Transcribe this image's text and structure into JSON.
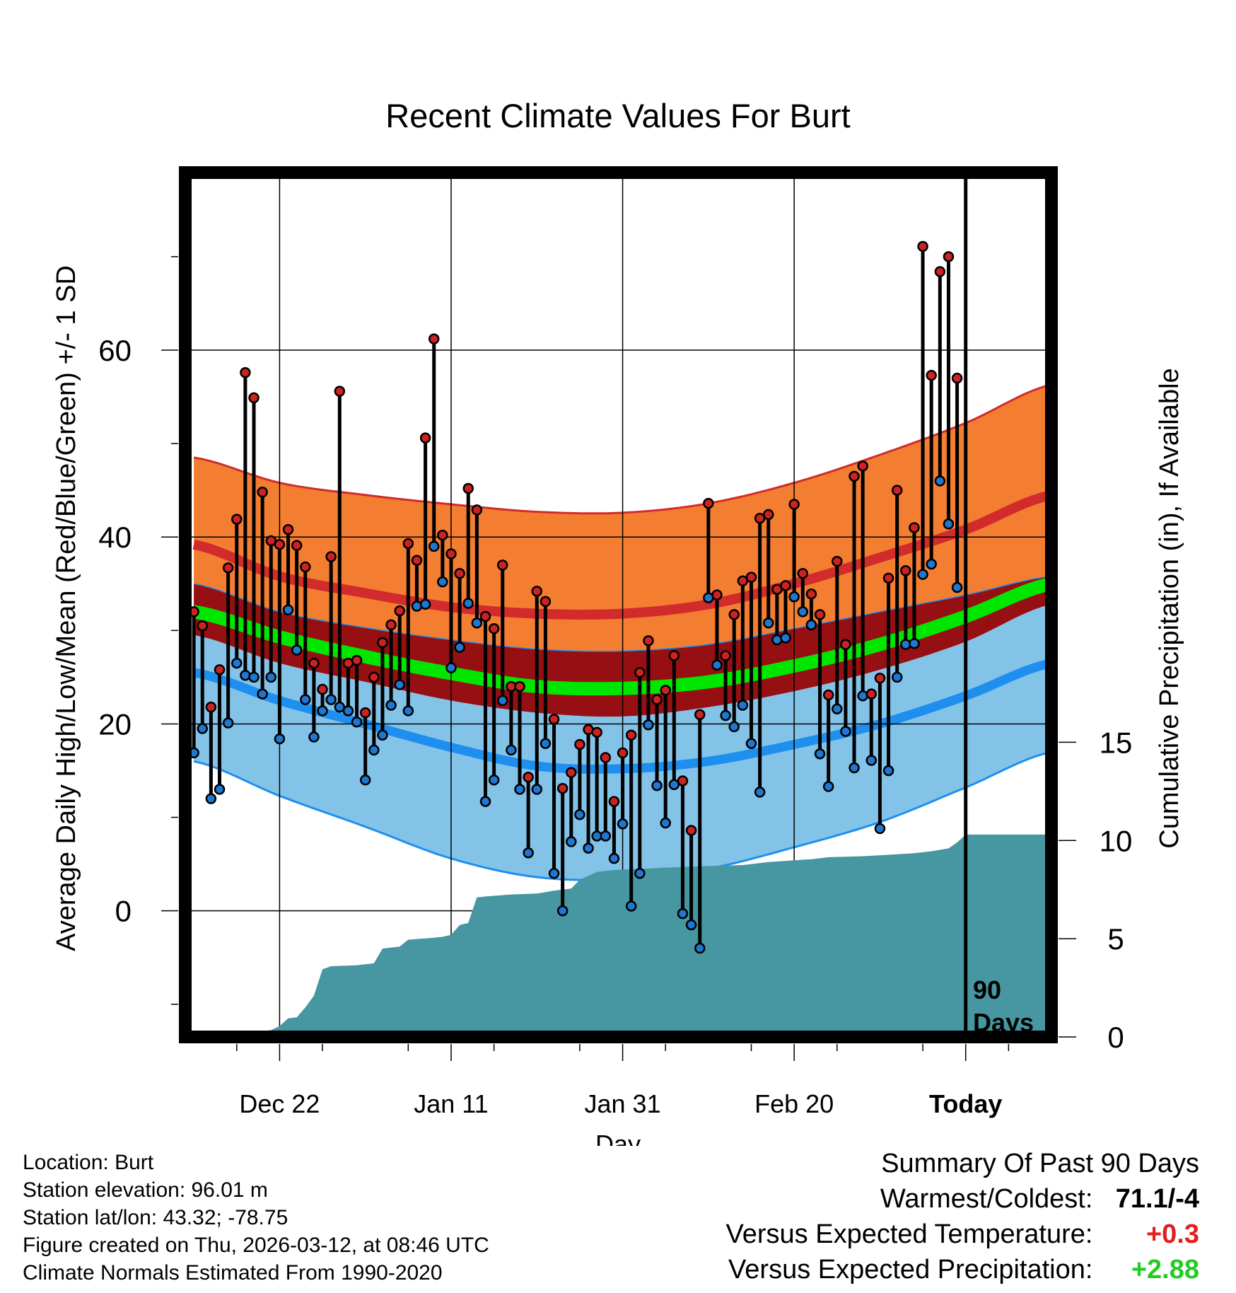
{
  "colors": {
    "orange_band": "#F37E31",
    "red_line": "#D22B2B",
    "dark_red_band": "#960F12",
    "green_line": "#00E600",
    "light_blue_band": "#83C3E8",
    "blue_line": "#1E8FEF",
    "precip_fill": "#4697A1",
    "high_point": "#CC2222",
    "low_point": "#1F77D0",
    "warm_value": "#E02020",
    "wet_value": "#22CC22"
  },
  "chart_data": {
    "type": "line",
    "title": "Recent Climate Values For Burt",
    "xlabel": "Day",
    "ylabel": "Average Daily High/Low/Mean (Red/Blue/Green) +/- 1 SD",
    "y2label": "Cumulative Precipitation (in), If Available",
    "xlim": [
      -11,
      90
    ],
    "ylim": [
      -13.5,
      79
    ],
    "y2lim": [
      0,
      44
    ],
    "y_ticks": [
      0,
      20,
      40,
      60
    ],
    "y2_ticks": [
      0,
      5,
      10,
      15
    ],
    "x_ticks": [
      {
        "x": 0,
        "label": "Dec 22"
      },
      {
        "x": 20,
        "label": "Jan 11"
      },
      {
        "x": 40,
        "label": "Jan 31"
      },
      {
        "x": 60,
        "label": "Feb 20"
      },
      {
        "x": 80,
        "label": "Today"
      }
    ],
    "today_marker": {
      "x": 80,
      "label_line1": "90",
      "label_line2": "Days"
    },
    "normals": {
      "x": [
        -10,
        0,
        10,
        20,
        30,
        40,
        50,
        60,
        70,
        80,
        90
      ],
      "high_upper": [
        48.5,
        45.8,
        44.5,
        43.5,
        42.7,
        42.6,
        43.6,
        45.8,
        48.8,
        52.2,
        56.3
      ],
      "high_mean": [
        39.2,
        35.8,
        34,
        32.5,
        31.8,
        31.8,
        32.8,
        35,
        37.8,
        40.8,
        44.5
      ],
      "high_lower": [
        35,
        32,
        30.3,
        29,
        28,
        27.8,
        28.5,
        30.2,
        32,
        33.8,
        35.8
      ],
      "mean": [
        32,
        29.3,
        27.2,
        25.4,
        24,
        23.8,
        24.5,
        26.2,
        28.5,
        31.5,
        35
      ],
      "low_upper": [
        29.5,
        26.5,
        24.5,
        22.5,
        21.2,
        20.8,
        21.8,
        23.5,
        25.8,
        28.8,
        32.8
      ],
      "low_mean": [
        25.5,
        22.5,
        20,
        17.5,
        15.5,
        15.2,
        16,
        17.8,
        20,
        23,
        26.5
      ],
      "low_lower": [
        16,
        12.3,
        9,
        5.6,
        3.6,
        3.4,
        4.5,
        6.8,
        9.5,
        13.2,
        17
      ]
    },
    "daily": {
      "x": [
        -10,
        -9,
        -8,
        -7,
        -6,
        -5,
        -4,
        -3,
        -2,
        -1,
        0,
        1,
        2,
        3,
        4,
        5,
        6,
        7,
        8,
        9,
        10,
        11,
        12,
        13,
        14,
        15,
        16,
        17,
        18,
        19,
        20,
        21,
        22,
        23,
        24,
        25,
        26,
        27,
        28,
        29,
        30,
        31,
        32,
        33,
        34,
        35,
        36,
        37,
        38,
        39,
        40,
        41,
        42,
        43,
        44,
        45,
        46,
        47,
        48,
        49,
        50,
        51,
        52,
        53,
        54,
        55,
        56,
        57,
        58,
        59,
        60,
        61,
        62,
        63,
        64,
        65,
        66,
        67,
        68,
        69,
        70,
        71,
        72,
        73,
        74,
        75,
        76,
        77,
        78,
        79
      ],
      "high": [
        32,
        30.5,
        21.8,
        25.8,
        36.7,
        41.9,
        57.6,
        54.9,
        44.8,
        39.6,
        39.2,
        40.8,
        39.1,
        36.8,
        26.5,
        23.7,
        37.9,
        55.6,
        26.5,
        26.8,
        21.2,
        25,
        28.7,
        30.6,
        32.1,
        39.3,
        37.5,
        50.6,
        61.2,
        40.2,
        38.2,
        36.1,
        45.2,
        42.9,
        31.5,
        30.2,
        37,
        24,
        24,
        14.3,
        34.2,
        33.1,
        20.5,
        13.1,
        14.8,
        17.8,
        19.4,
        19.1,
        16.4,
        11.7,
        16.9,
        18.8,
        25.5,
        28.9,
        22.6,
        23.6,
        27.3,
        13.9,
        8.6,
        21,
        43.6,
        33.8,
        27.3,
        31.7,
        35.3,
        35.7,
        42,
        42.4,
        34.4,
        34.8,
        43.5,
        36.1,
        33.9,
        31.7,
        23.1,
        37.4,
        28.5,
        46.5,
        47.6,
        23.2,
        24.9,
        35.6,
        45,
        36.4,
        41,
        71.1,
        57.3,
        68.4,
        70,
        57
      ],
      "low": [
        16.9,
        19.5,
        12,
        13,
        20.1,
        26.5,
        25.2,
        25,
        23.2,
        25,
        18.4,
        32.2,
        27.9,
        22.6,
        18.6,
        21.4,
        22.6,
        21.8,
        21.4,
        20.2,
        14,
        17.2,
        18.8,
        22,
        24.2,
        21.4,
        32.6,
        32.8,
        39,
        35.2,
        26,
        28.2,
        32.9,
        30.8,
        11.7,
        14,
        22.5,
        17.2,
        13,
        6.2,
        13,
        17.9,
        4,
        0,
        7.4,
        10.3,
        6.7,
        8,
        8,
        5.6,
        9.3,
        0.5,
        4,
        19.9,
        13.4,
        9.4,
        13.5,
        -0.3,
        -1.5,
        -4,
        33.5,
        26.3,
        20.9,
        19.7,
        22,
        17.9,
        12.7,
        30.8,
        29,
        29.2,
        33.6,
        32,
        30.6,
        16.8,
        13.3,
        21.6,
        19.2,
        15.3,
        23,
        16.1,
        8.8,
        15,
        25,
        28.5,
        28.6,
        36,
        37.1,
        46,
        41.4,
        34.6
      ]
    },
    "precip_cumulative": {
      "x": [
        -10,
        -7,
        -4,
        -1,
        0,
        1,
        2,
        3,
        4,
        5,
        6,
        9,
        11,
        12,
        14,
        15,
        18,
        19,
        20,
        21,
        22,
        23,
        24,
        27,
        30,
        32,
        34,
        35,
        37,
        39,
        42,
        45,
        50,
        54,
        55,
        57,
        62,
        64,
        68,
        70,
        72,
        74,
        76,
        78,
        79,
        80,
        90
      ],
      "values": [
        0,
        0,
        0.15,
        0.35,
        0.55,
        0.95,
        1.0,
        1.5,
        2.1,
        3.45,
        3.6,
        3.65,
        3.75,
        4.5,
        4.6,
        4.95,
        5.05,
        5.1,
        5.2,
        5.7,
        5.8,
        7.1,
        7.15,
        7.25,
        7.3,
        7.45,
        7.55,
        8.0,
        8.4,
        8.5,
        8.55,
        8.62,
        8.7,
        8.75,
        8.8,
        8.9,
        9.05,
        9.15,
        9.2,
        9.25,
        9.3,
        9.35,
        9.45,
        9.6,
        9.9,
        10.3,
        10.3
      ]
    }
  },
  "info": {
    "location": "Location: Burt",
    "elevation": "Station elevation: 96.01 m",
    "latlon": "Station lat/lon: 43.32; -78.75",
    "created": "Figure created on Thu, 2026-03-12, at 08:46 UTC",
    "normals": "Climate Normals Estimated From 1990-2020"
  },
  "summary": {
    "title": "Summary Of Past 90 Days",
    "warm_cold_label": "Warmest/Coldest:",
    "warm_cold_value": "71.1/-4",
    "temp_label": "Versus Expected Temperature:",
    "temp_value": "+0.3",
    "precip_label": "Versus Expected Precipitation:",
    "precip_value": "+2.88"
  }
}
